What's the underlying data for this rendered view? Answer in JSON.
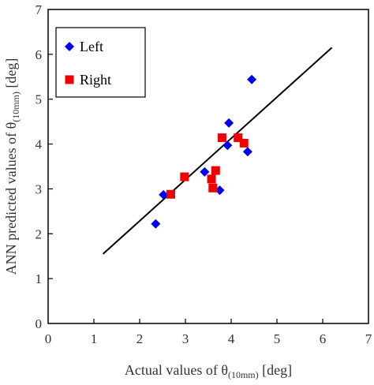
{
  "chart_data": {
    "type": "scatter",
    "title": "",
    "xlabel": {
      "prefix": "Actual values of θ",
      "subscript": "(10mm)",
      "suffix": " [deg]"
    },
    "ylabel": {
      "prefix": "ANN predicted values of θ",
      "subscript": "(10mm)",
      "suffix": " [deg]"
    },
    "xlim": [
      0,
      7
    ],
    "ylim": [
      0,
      7
    ],
    "xticks": [
      "0",
      "1",
      "2",
      "3",
      "4",
      "5",
      "6",
      "7"
    ],
    "yticks": [
      "0",
      "1",
      "2",
      "3",
      "4",
      "5",
      "6",
      "7"
    ],
    "grid": false,
    "legend_position": "top-left",
    "series": [
      {
        "name": "Left",
        "marker": "diamond",
        "color": "#0000ee",
        "points": [
          {
            "x": 2.35,
            "y": 2.22
          },
          {
            "x": 2.52,
            "y": 2.87
          },
          {
            "x": 3.42,
            "y": 3.38
          },
          {
            "x": 3.75,
            "y": 2.97
          },
          {
            "x": 3.92,
            "y": 3.97
          },
          {
            "x": 3.95,
            "y": 4.47
          },
          {
            "x": 4.36,
            "y": 3.83
          },
          {
            "x": 4.45,
            "y": 5.44
          }
        ]
      },
      {
        "name": "Right",
        "marker": "square",
        "color": "#ee0000",
        "points": [
          {
            "x": 2.68,
            "y": 2.88
          },
          {
            "x": 2.98,
            "y": 3.27
          },
          {
            "x": 3.57,
            "y": 3.22
          },
          {
            "x": 3.6,
            "y": 3.02
          },
          {
            "x": 3.66,
            "y": 3.41
          },
          {
            "x": 3.8,
            "y": 4.14
          },
          {
            "x": 4.15,
            "y": 4.14
          },
          {
            "x": 4.28,
            "y": 4.02
          }
        ]
      }
    ],
    "trendline": {
      "color": "#000000",
      "x": [
        1.2,
        6.2
      ],
      "y": [
        1.55,
        6.15
      ]
    }
  }
}
